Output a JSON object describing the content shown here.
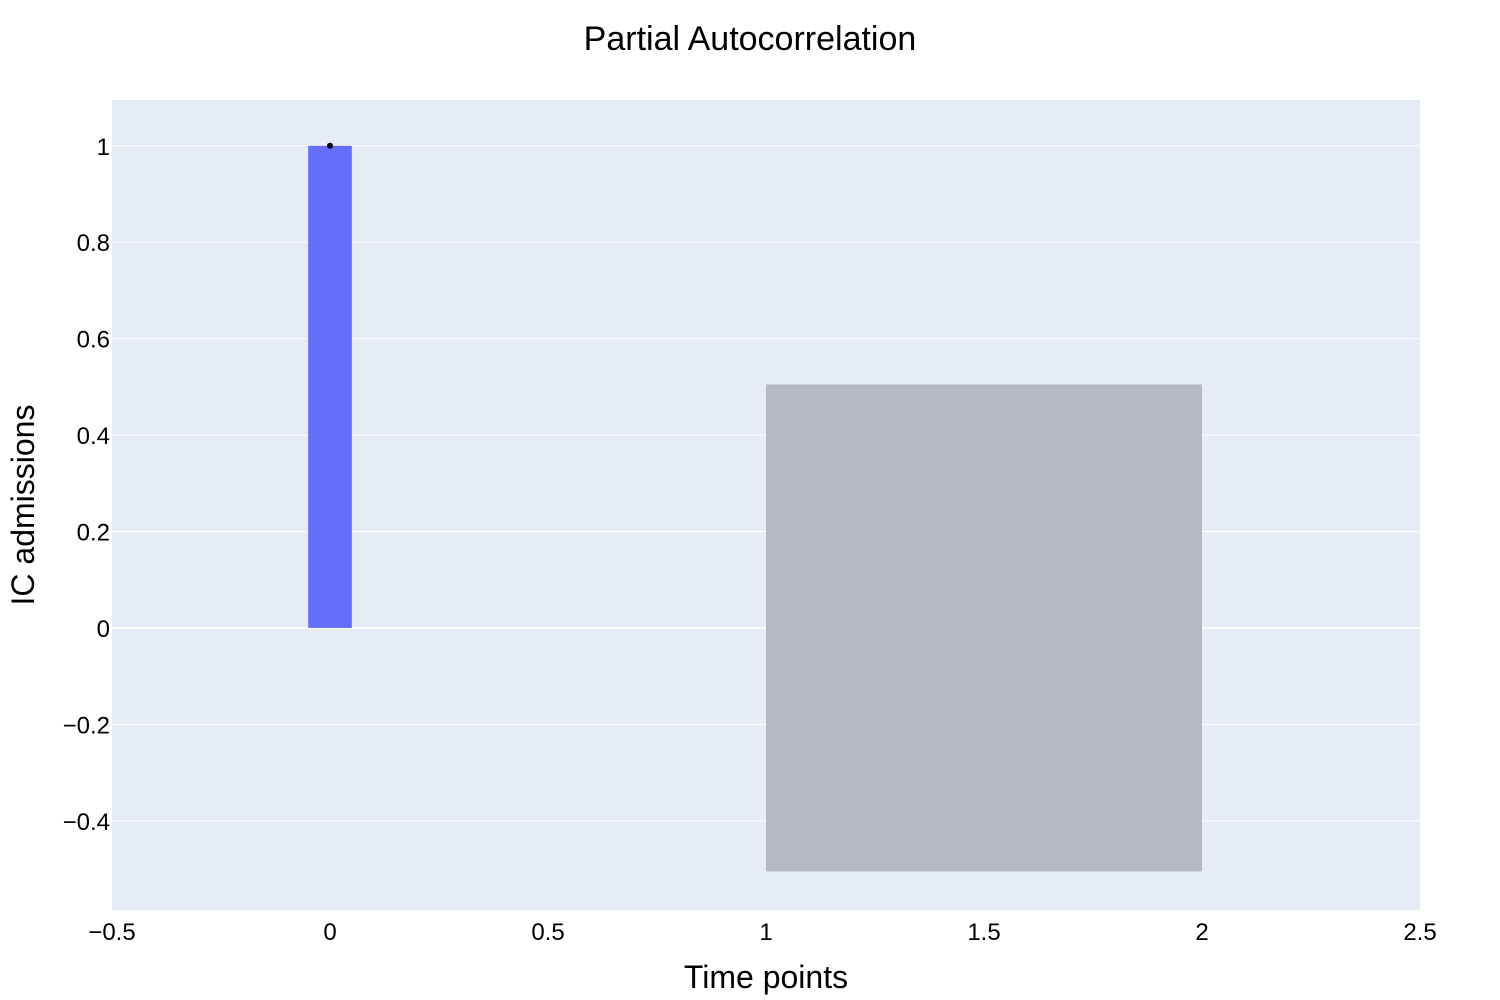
{
  "chart_data": {
    "type": "bar",
    "title": "Partial Autocorrelation",
    "xlabel": "Time points",
    "ylabel": "IC admissions",
    "xlim": [
      -0.5,
      2.5
    ],
    "ylim": [
      -0.585,
      1.095
    ],
    "x_ticks": [
      -0.5,
      0,
      0.5,
      1,
      1.5,
      2,
      2.5
    ],
    "x_tick_labels": [
      "−0.5",
      "0",
      "0.5",
      "1",
      "1.5",
      "2",
      "2.5"
    ],
    "y_ticks": [
      -0.4,
      -0.2,
      0,
      0.2,
      0.4,
      0.6,
      0.8,
      1
    ],
    "y_tick_labels": [
      "−0.4",
      "−0.2",
      "0",
      "0.2",
      "0.4",
      "0.6",
      "0.8",
      "1"
    ],
    "grid": true,
    "series": [
      {
        "type": "bar",
        "x": [
          0
        ],
        "values": [
          1
        ],
        "bar_width": 0.1,
        "color": "#636EFA"
      },
      {
        "type": "scatter",
        "x": [
          0
        ],
        "values": [
          1
        ],
        "color": "#000000"
      }
    ],
    "confidence_band": {
      "x_range": [
        1,
        2
      ],
      "lower": -0.505,
      "upper": 0.505,
      "color": "#B4B8BF"
    },
    "colors": {
      "plot_background": "#E5ECF6",
      "gridline": "#FFFFFF"
    }
  }
}
